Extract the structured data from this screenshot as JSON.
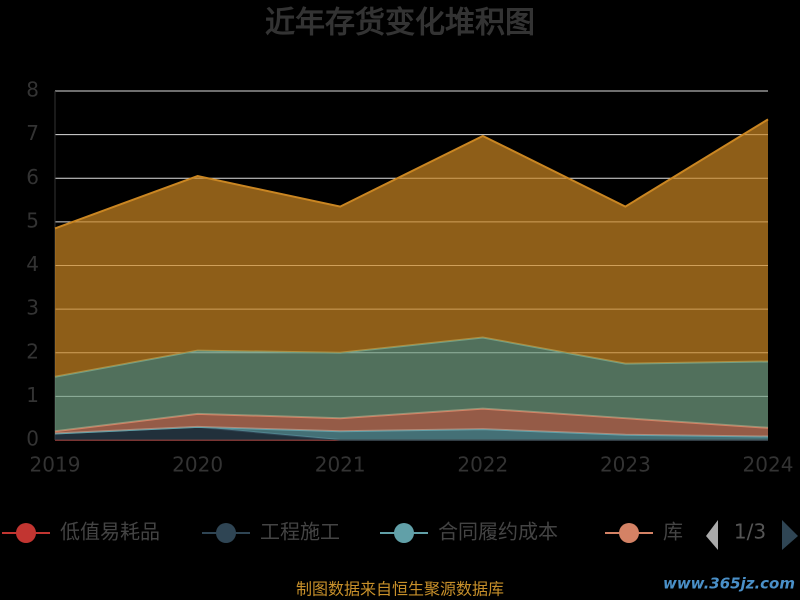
{
  "chart_data": {
    "type": "stacked_area",
    "title": "近年存货变化堆积图",
    "categories": [
      "2019",
      "2020",
      "2021",
      "2022",
      "2023",
      "2024"
    ],
    "series": [
      {
        "name": "低值易耗品",
        "color": "#c23531",
        "values": [
          0,
          0,
          0,
          0,
          0,
          0
        ]
      },
      {
        "name": "工程施工",
        "color": "#2f4554",
        "values": [
          0.15,
          0.3,
          0,
          0,
          0,
          0
        ]
      },
      {
        "name": "合同履约成本",
        "color": "#61a0a8",
        "values": [
          0,
          0,
          0.2,
          0.25,
          0.12,
          0.08
        ]
      },
      {
        "name": "库",
        "color": "#d48265",
        "values": [
          0.05,
          0.3,
          0.3,
          0.47,
          0.38,
          0.2
        ]
      },
      {
        "color": "#749f83",
        "values": [
          1.25,
          1.45,
          1.5,
          1.63,
          1.25,
          1.52
        ]
      },
      {
        "color": "#ca8622",
        "values": [
          3.4,
          4.0,
          3.35,
          4.62,
          3.6,
          5.55
        ]
      }
    ],
    "ylim": [
      0,
      8
    ],
    "yticks": [
      0,
      1,
      2,
      3,
      4,
      5,
      6,
      7,
      8
    ],
    "grid": true,
    "legend_page": "1/3",
    "source": "制图数据来自恒生聚源数据库",
    "watermark": "www.365jz.com"
  }
}
